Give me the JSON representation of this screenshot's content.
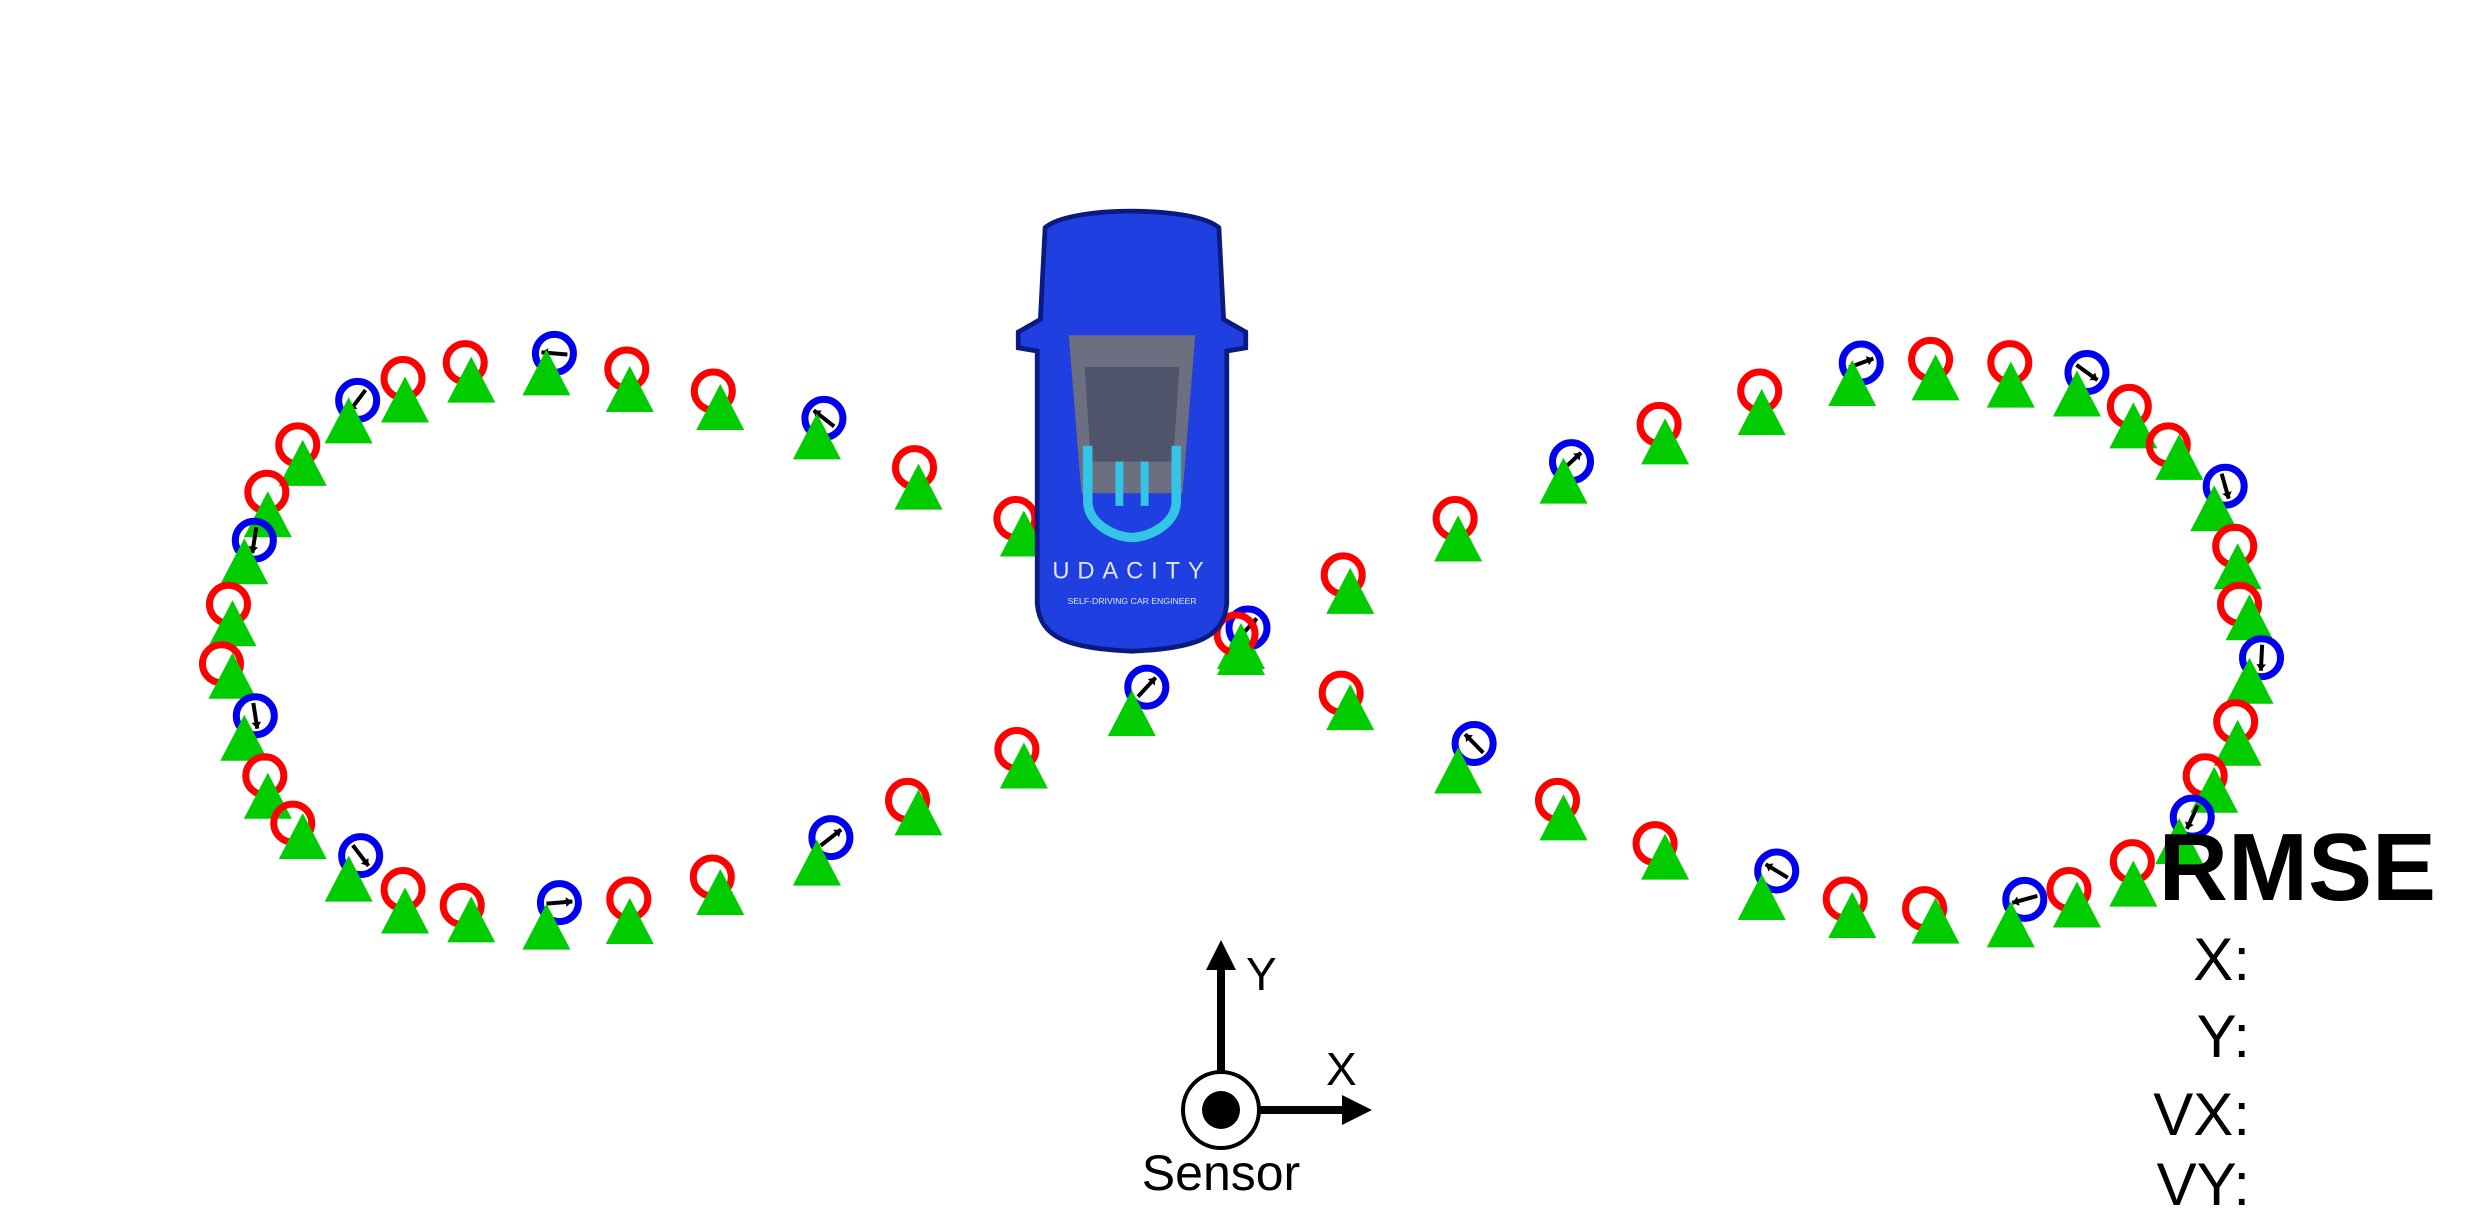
{
  "sensor": {
    "label": "Sensor",
    "y_axis_label": "Y",
    "x_axis_label": "X"
  },
  "car": {
    "brand": "UDACITY",
    "subtitle": "SELF-DRIVING CAR ENGINEER",
    "color": "#1f3fe0"
  },
  "rmse": {
    "title": "RMSE",
    "x_label": "X:",
    "y_label": "Y:",
    "vx_label": "VX:",
    "vy_label": "VY:"
  },
  "legend_semantics": {
    "lidar_marker": "red-circle",
    "radar_marker": "blue-circle-with-arrow",
    "estimate_marker": "green-triangle"
  },
  "colors": {
    "lidar": "#ff0000",
    "radar": "#0000ee",
    "estimate": "#00cc00",
    "background": "#ffffff"
  }
}
